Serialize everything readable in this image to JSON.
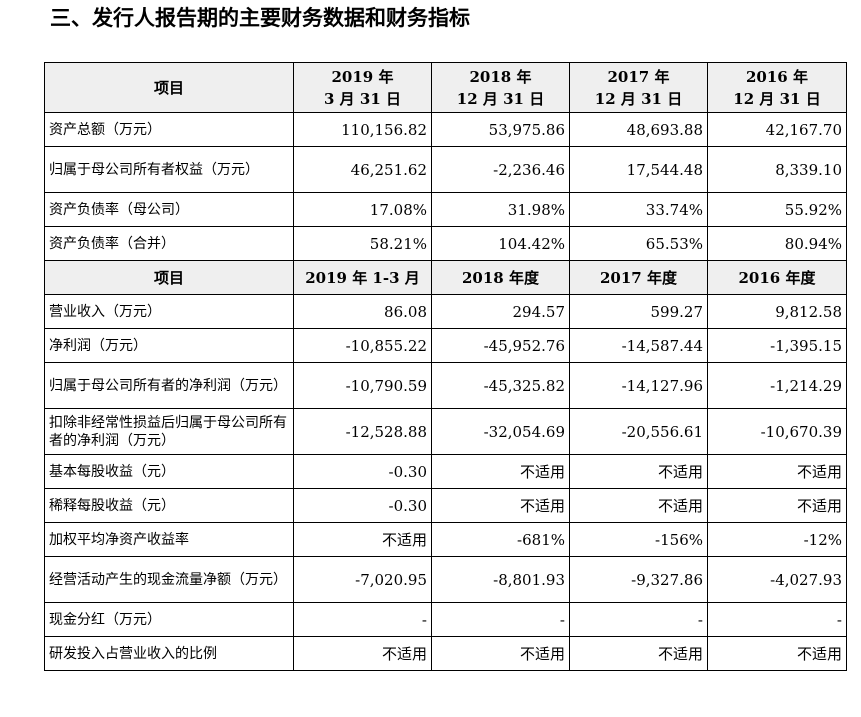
{
  "section_title": "三、发行人报告期的主要财务数据和财务指标",
  "table1": {
    "header_label": "项目",
    "columns": [
      {
        "line1": "2019 年",
        "line2": "3 月 31 日"
      },
      {
        "line1": "2018 年",
        "line2": "12 月 31 日"
      },
      {
        "line1": "2017 年",
        "line2": "12 月 31 日"
      },
      {
        "line1": "2016 年",
        "line2": "12 月 31 日"
      }
    ],
    "rows": [
      {
        "label": "资产总额（万元）",
        "values": [
          "110,156.82",
          "53,975.86",
          "48,693.88",
          "42,167.70"
        ]
      },
      {
        "label": "归属于母公司所有者权益（万元）",
        "values": [
          "46,251.62",
          "-2,236.46",
          "17,544.48",
          "8,339.10"
        ]
      },
      {
        "label": "资产负债率（母公司）",
        "values": [
          "17.08%",
          "31.98%",
          "33.74%",
          "55.92%"
        ]
      },
      {
        "label": "资产负债率（合并）",
        "values": [
          "58.21%",
          "104.42%",
          "65.53%",
          "80.94%"
        ]
      }
    ]
  },
  "table2": {
    "header_label": "项目",
    "columns": [
      "2019 年 1-3 月",
      "2018 年度",
      "2017 年度",
      "2016 年度"
    ],
    "rows": [
      {
        "label": "营业收入（万元）",
        "values": [
          "86.08",
          "294.57",
          "599.27",
          "9,812.58"
        ]
      },
      {
        "label": "净利润（万元）",
        "values": [
          "-10,855.22",
          "-45,952.76",
          "-14,587.44",
          "-1,395.15"
        ]
      },
      {
        "label": "归属于母公司所有者的净利润（万元）",
        "values": [
          "-10,790.59",
          "-45,325.82",
          "-14,127.96",
          "-1,214.29"
        ]
      },
      {
        "label": "扣除非经常性损益后归属于母公司所有者的净利润（万元）",
        "values": [
          "-12,528.88",
          "-32,054.69",
          "-20,556.61",
          "-10,670.39"
        ]
      },
      {
        "label": "基本每股收益（元）",
        "values": [
          "-0.30",
          "不适用",
          "不适用",
          "不适用"
        ]
      },
      {
        "label": "稀释每股收益（元）",
        "values": [
          "-0.30",
          "不适用",
          "不适用",
          "不适用"
        ]
      },
      {
        "label": "加权平均净资产收益率",
        "values": [
          "不适用",
          "-681%",
          "-156%",
          "-12%"
        ]
      },
      {
        "label": "经营活动产生的现金流量净额（万元）",
        "values": [
          "-7,020.95",
          "-8,801.93",
          "-9,327.86",
          "-4,027.93"
        ]
      },
      {
        "label": "现金分红（万元）",
        "values": [
          "-",
          "-",
          "-",
          "-"
        ]
      },
      {
        "label": "研发投入占营业收入的比例",
        "values": [
          "不适用",
          "不适用",
          "不适用",
          "不适用"
        ]
      }
    ]
  }
}
